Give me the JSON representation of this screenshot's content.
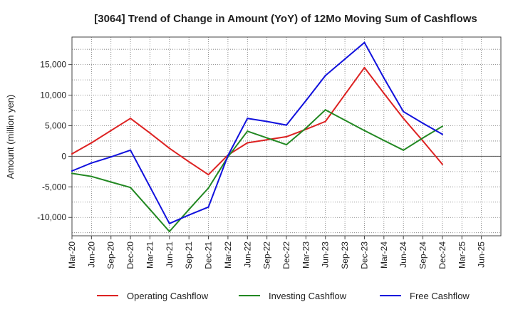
{
  "chart_data": {
    "type": "line",
    "title": "[3064]  Trend of Change in Amount (YoY) of 12Mo Moving Sum of Cashflows",
    "xlabel": "",
    "ylabel": "Amount (million yen)",
    "ylim": [
      -13000,
      19500
    ],
    "yticks": [
      -10000,
      -5000,
      0,
      5000,
      10000,
      15000
    ],
    "ytick_labels": [
      "-10,000",
      "-5,000",
      "0",
      "5,000",
      "10,000",
      "15,000"
    ],
    "categories": [
      "Mar-20",
      "Jun-20",
      "Sep-20",
      "Dec-20",
      "Mar-21",
      "Jun-21",
      "Sep-21",
      "Dec-21",
      "Mar-22",
      "Jun-22",
      "Sep-22",
      "Dec-22",
      "Mar-23",
      "Jun-23",
      "Sep-23",
      "Dec-23",
      "Mar-24",
      "Jun-24",
      "Sep-24",
      "Dec-24",
      "Mar-25",
      "Jun-25"
    ],
    "grid": true,
    "legend_position": "bottom",
    "series": [
      {
        "name": "Operating Cashflow",
        "color": "#dd2222",
        "values": [
          400,
          2200,
          4200,
          6200,
          3800,
          1300,
          -900,
          -3000,
          200,
          2200,
          2700,
          3200,
          4400,
          5700,
          10100,
          14500,
          10300,
          6200,
          2500,
          -1300,
          null,
          null
        ]
      },
      {
        "name": "Investing Cashflow",
        "color": "#228822",
        "values": [
          -2800,
          -3300,
          -4200,
          -5100,
          -8700,
          -12300,
          -8700,
          -5200,
          -100,
          4100,
          3000,
          1900,
          4600,
          7600,
          5900,
          4200,
          2600,
          1000,
          3000,
          4900,
          null,
          null
        ]
      },
      {
        "name": "Free Cashflow",
        "color": "#1111dd",
        "values": [
          -2400,
          -1100,
          -100,
          1000,
          -5000,
          -11000,
          -9600,
          -8300,
          100,
          6200,
          5700,
          5100,
          9100,
          13200,
          15900,
          18600,
          12800,
          7300,
          5400,
          3600,
          null,
          null
        ]
      }
    ]
  }
}
